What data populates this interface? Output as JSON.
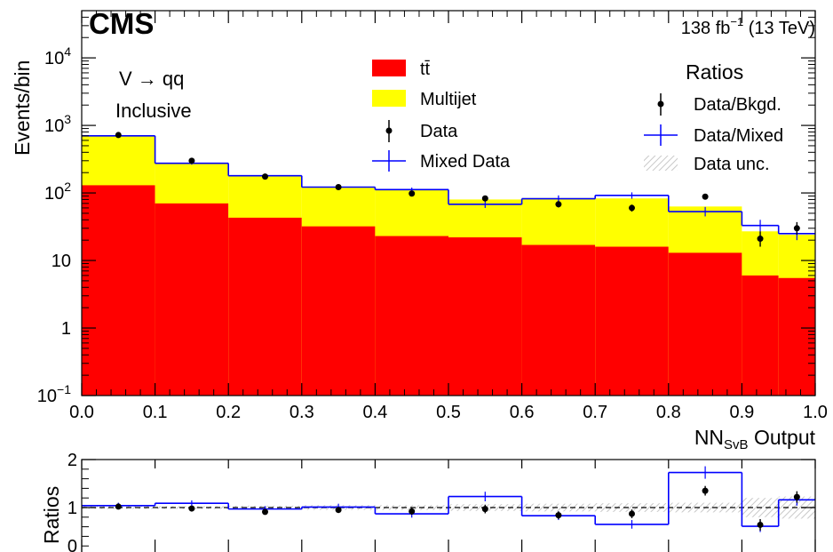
{
  "header": {
    "experiment": "CMS",
    "lumi_value": "138 fb",
    "lumi_exp": "−1",
    "lumi_energy": " (13 TeV)"
  },
  "annotations": {
    "channel_main": "V → qq",
    "channel_sub": "Inclusive"
  },
  "legend_main": {
    "ttbar": "tt̄",
    "multijet": "Multijet",
    "data": "Data",
    "mixed": "Mixed Data"
  },
  "legend_ratio": {
    "title": "Ratios",
    "data_bkgd": "Data/Bkgd.",
    "data_mixed": "Data/Mixed",
    "data_unc": "Data unc."
  },
  "colors": {
    "ttbar": "#ff0000",
    "multijet": "#ffff00",
    "mixed": "#0000ff",
    "data": "#000000",
    "unc_hatch": "#c8c8c8"
  },
  "chart_data": [
    {
      "type": "bar",
      "subtype": "stacked-histogram-log",
      "ylabel": "Events/bin",
      "xlabel_main": "NN",
      "xlabel_sub": "SvB",
      "xlabel_suffix": " Output",
      "y_log": true,
      "xlim": [
        0.0,
        1.0
      ],
      "ylim": [
        0.1,
        50000
      ],
      "x_ticks": [
        "0.0",
        "0.1",
        "0.2",
        "0.3",
        "0.4",
        "0.5",
        "0.6",
        "0.7",
        "0.8",
        "0.9",
        "1.0"
      ],
      "y_ticks": [
        {
          "value": 0.1,
          "base": "10",
          "exp": "−1"
        },
        {
          "value": 1,
          "base": "1",
          "exp": ""
        },
        {
          "value": 10,
          "base": "10",
          "exp": ""
        },
        {
          "value": 100,
          "base": "10",
          "exp": "2"
        },
        {
          "value": 1000,
          "base": "10",
          "exp": "3"
        },
        {
          "value": 10000,
          "base": "10",
          "exp": "4"
        }
      ],
      "bin_edges": [
        0.0,
        0.1,
        0.2,
        0.3,
        0.4,
        0.5,
        0.6,
        0.7,
        0.8,
        0.9,
        0.95,
        1.0
      ],
      "series": [
        {
          "name": "tt̄",
          "kind": "stack",
          "values": [
            130,
            70,
            43,
            32,
            23,
            22,
            17,
            16,
            13,
            6,
            5.5
          ]
        },
        {
          "name": "Multijet",
          "kind": "stack",
          "values": [
            570,
            210,
            140,
            92,
            88,
            58,
            67,
            67,
            50,
            21,
            18.5
          ]
        },
        {
          "name": "Mixed Data",
          "kind": "step",
          "values": [
            700,
            275,
            180,
            122,
            112,
            68,
            82,
            92,
            53,
            33,
            25
          ],
          "err_lo": [
            660,
            262,
            172,
            116,
            105,
            60,
            73,
            82,
            45,
            27,
            20
          ],
          "err_hi": [
            740,
            290,
            188,
            128,
            120,
            78,
            92,
            102,
            62,
            40,
            31
          ]
        },
        {
          "name": "Data",
          "kind": "points",
          "x": [
            0.05,
            0.15,
            0.25,
            0.35,
            0.45,
            0.55,
            0.65,
            0.75,
            0.85,
            0.925,
            0.975
          ],
          "values": [
            720,
            300,
            175,
            122,
            98,
            83,
            68,
            60,
            88,
            21,
            30
          ],
          "err_lo": [
            690,
            285,
            165,
            115,
            90,
            75,
            61,
            53,
            80,
            16,
            24
          ],
          "err_hi": [
            750,
            315,
            185,
            129,
            106,
            91,
            75,
            67,
            96,
            27,
            37
          ]
        }
      ]
    },
    {
      "type": "line",
      "subtype": "ratio",
      "ylabel": "Ratios",
      "ylim": [
        0,
        2
      ],
      "y_ticks": [
        "0",
        "1",
        "2"
      ],
      "reference": 1.0,
      "bin_edges": [
        0.0,
        0.1,
        0.2,
        0.3,
        0.4,
        0.5,
        0.6,
        0.7,
        0.8,
        0.9,
        0.95,
        1.0
      ],
      "series": [
        {
          "name": "Data/Mixed",
          "kind": "step",
          "values": [
            1.04,
            1.09,
            0.97,
            1.01,
            0.87,
            1.23,
            0.83,
            0.65,
            1.73,
            0.61,
            1.16
          ],
          "err_lo": [
            0.98,
            1.03,
            0.91,
            0.94,
            0.79,
            1.13,
            0.74,
            0.56,
            1.6,
            0.49,
            1.04
          ],
          "err_hi": [
            1.1,
            1.15,
            1.03,
            1.08,
            0.95,
            1.33,
            0.92,
            0.74,
            1.86,
            0.73,
            1.28
          ]
        },
        {
          "name": "Data/Bkgd.",
          "kind": "points",
          "x": [
            0.05,
            0.15,
            0.25,
            0.35,
            0.45,
            0.55,
            0.65,
            0.75,
            0.85,
            0.925,
            0.975
          ],
          "values": [
            1.02,
            0.98,
            0.91,
            0.95,
            0.92,
            0.97,
            0.84,
            0.87,
            1.35,
            0.64,
            1.22
          ],
          "err_lo": [
            0.97,
            0.93,
            0.86,
            0.89,
            0.85,
            0.88,
            0.76,
            0.78,
            1.25,
            0.52,
            1.1
          ],
          "err_hi": [
            1.07,
            1.03,
            0.96,
            1.01,
            0.99,
            1.06,
            0.92,
            0.96,
            1.45,
            0.76,
            1.34
          ]
        },
        {
          "name": "Data unc.",
          "kind": "band",
          "lo": [
            0.97,
            0.97,
            0.96,
            0.95,
            0.95,
            0.93,
            0.92,
            0.91,
            0.9,
            0.8,
            0.77
          ],
          "hi": [
            1.03,
            1.03,
            1.04,
            1.05,
            1.05,
            1.07,
            1.08,
            1.09,
            1.1,
            1.2,
            1.23
          ]
        }
      ]
    }
  ]
}
